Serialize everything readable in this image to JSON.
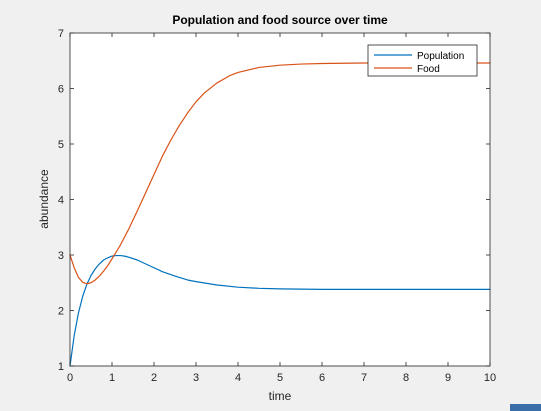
{
  "chart_data": {
    "type": "line",
    "title": "Population and food source over time",
    "xlabel": "time",
    "ylabel": "abundance",
    "xlim": [
      0,
      10
    ],
    "ylim": [
      1,
      7
    ],
    "xticks": [
      "0",
      "1",
      "2",
      "3",
      "4",
      "5",
      "6",
      "7",
      "8",
      "9",
      "10"
    ],
    "yticks": [
      "1",
      "2",
      "3",
      "4",
      "5",
      "6",
      "7"
    ],
    "legend_position": "top-right",
    "grid": false,
    "series": [
      {
        "name": "Population",
        "color": "#0072bd",
        "x": [
          0,
          0.1,
          0.2,
          0.3,
          0.4,
          0.5,
          0.6,
          0.7,
          0.8,
          0.9,
          1.0,
          1.1,
          1.2,
          1.3,
          1.4,
          1.6,
          1.8,
          2.0,
          2.2,
          2.5,
          2.8,
          3.0,
          3.5,
          4.0,
          4.5,
          5.0,
          6.0,
          7.0,
          8.0,
          9.0,
          10.0
        ],
        "y": [
          1.0,
          1.55,
          1.95,
          2.25,
          2.47,
          2.63,
          2.75,
          2.84,
          2.91,
          2.95,
          2.98,
          2.99,
          2.99,
          2.98,
          2.96,
          2.91,
          2.84,
          2.77,
          2.7,
          2.62,
          2.55,
          2.52,
          2.46,
          2.42,
          2.4,
          2.39,
          2.38,
          2.38,
          2.38,
          2.38,
          2.38
        ]
      },
      {
        "name": "Food",
        "color": "#d95319",
        "x": [
          0,
          0.1,
          0.2,
          0.3,
          0.4,
          0.5,
          0.6,
          0.7,
          0.8,
          0.9,
          1.0,
          1.2,
          1.4,
          1.6,
          1.8,
          2.0,
          2.2,
          2.4,
          2.6,
          2.8,
          3.0,
          3.2,
          3.5,
          3.8,
          4.0,
          4.5,
          5.0,
          5.5,
          6.0,
          7.0,
          8.0,
          9.0,
          10.0
        ],
        "y": [
          3.0,
          2.77,
          2.6,
          2.51,
          2.48,
          2.5,
          2.55,
          2.62,
          2.71,
          2.81,
          2.93,
          3.18,
          3.47,
          3.79,
          4.12,
          4.45,
          4.78,
          5.07,
          5.33,
          5.56,
          5.76,
          5.92,
          6.1,
          6.23,
          6.29,
          6.38,
          6.42,
          6.44,
          6.45,
          6.46,
          6.46,
          6.46,
          6.46
        ]
      }
    ]
  }
}
